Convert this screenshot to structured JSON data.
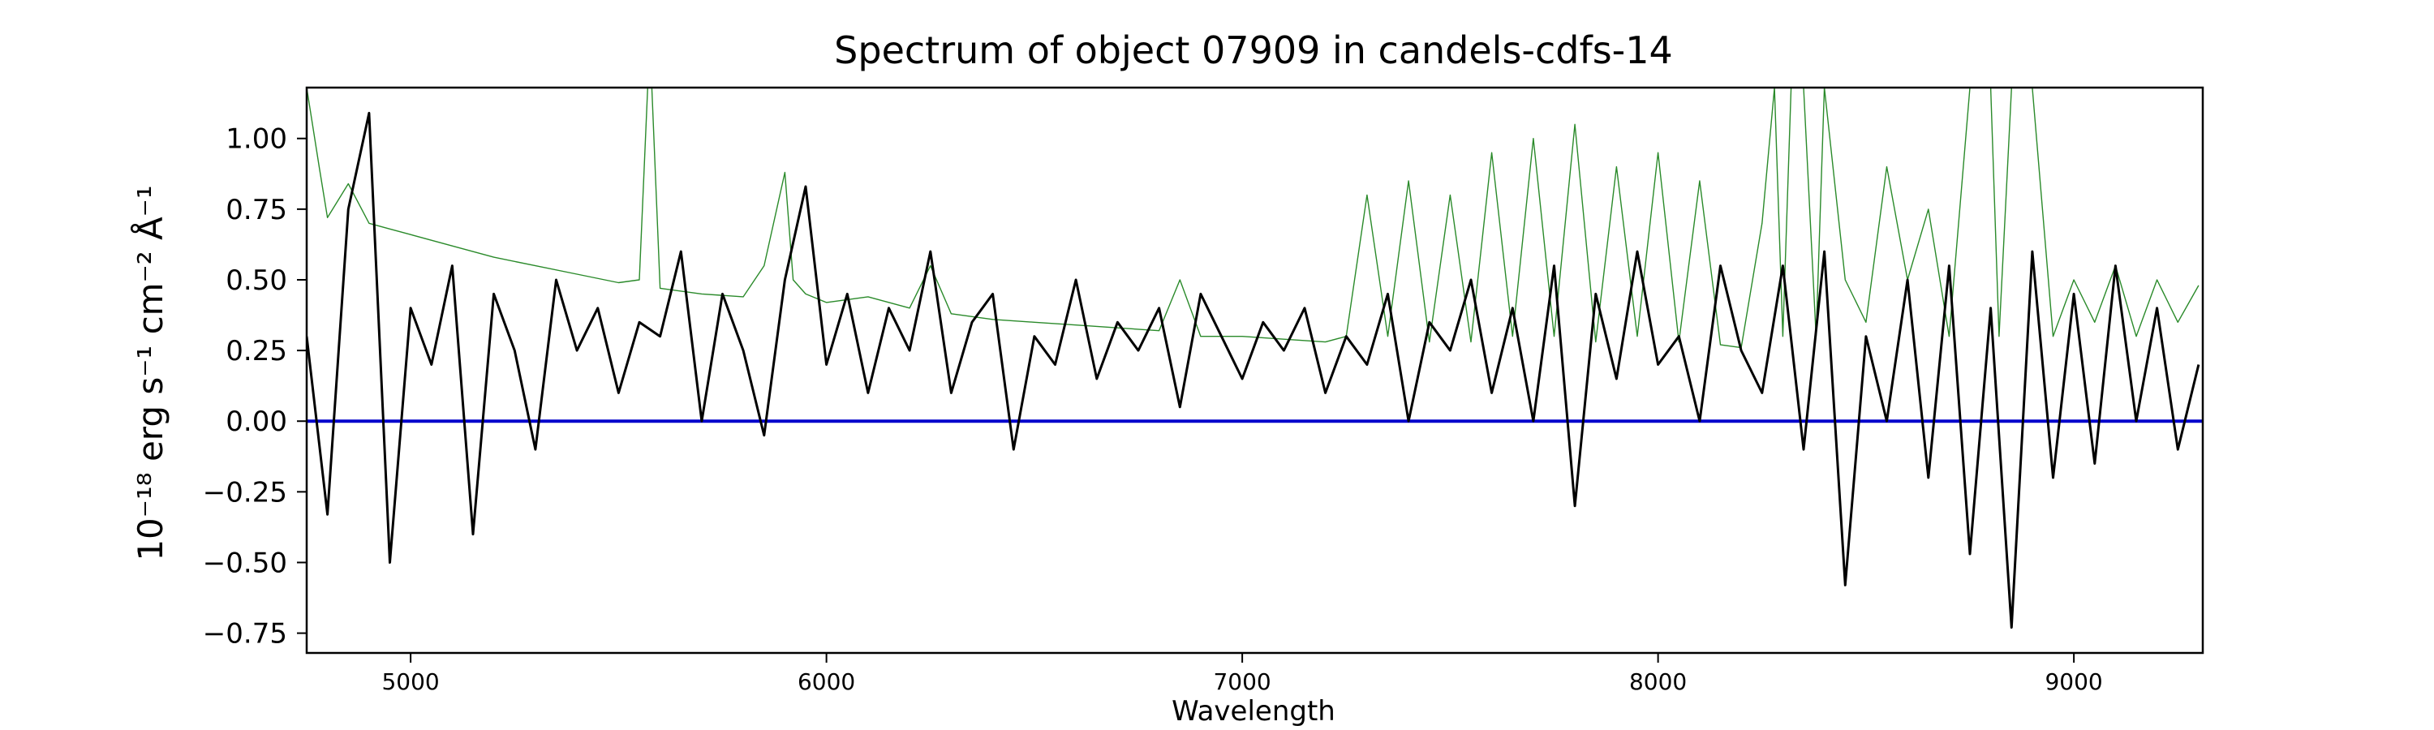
{
  "chart_data": {
    "type": "line",
    "title": "Spectrum of object 07909 in candels-cdfs-14",
    "xlabel": "Wavelength",
    "ylabel": "10⁻¹⁸ erg s⁻¹ cm⁻² Å⁻¹",
    "xlim": [
      4750,
      9310
    ],
    "ylim": [
      -0.82,
      1.18
    ],
    "x_ticks": [
      5000,
      6000,
      7000,
      8000,
      9000
    ],
    "y_ticks": [
      1.0,
      0.75,
      0.5,
      0.25,
      0.0,
      -0.25,
      -0.5,
      -0.75
    ],
    "x_tick_labels": [
      "5000",
      "6000",
      "7000",
      "8000",
      "9000"
    ],
    "y_tick_labels": [
      "1.00",
      "0.75",
      "0.50",
      "0.25",
      "0.00",
      "−0.25",
      "−0.50",
      "−0.75"
    ],
    "grid": false,
    "series": [
      {
        "role": "flux",
        "color": "#000000",
        "x": [
          4750,
          4800,
          4850,
          4900,
          4950,
          5000,
          5050,
          5100,
          5150,
          5200,
          5250,
          5300,
          5350,
          5400,
          5450,
          5500,
          5550,
          5600,
          5650,
          5700,
          5750,
          5800,
          5850,
          5900,
          5950,
          6000,
          6050,
          6100,
          6150,
          6200,
          6250,
          6300,
          6350,
          6400,
          6450,
          6500,
          6550,
          6600,
          6650,
          6700,
          6750,
          6800,
          6850,
          6900,
          6950,
          7000,
          7050,
          7100,
          7150,
          7200,
          7250,
          7300,
          7350,
          7400,
          7450,
          7500,
          7550,
          7600,
          7650,
          7700,
          7750,
          7800,
          7850,
          7900,
          7950,
          8000,
          8050,
          8100,
          8150,
          8200,
          8250,
          8300,
          8350,
          8400,
          8450,
          8500,
          8550,
          8600,
          8650,
          8700,
          8750,
          8800,
          8850,
          8900,
          8950,
          9000,
          9050,
          9100,
          9150,
          9200,
          9250,
          9300
        ],
        "y": [
          0.3,
          -0.33,
          0.75,
          1.09,
          -0.5,
          0.4,
          0.2,
          0.55,
          -0.4,
          0.45,
          0.25,
          -0.1,
          0.5,
          0.25,
          0.4,
          0.1,
          0.35,
          0.3,
          0.6,
          0.0,
          0.45,
          0.25,
          -0.05,
          0.5,
          0.83,
          0.2,
          0.45,
          0.1,
          0.4,
          0.25,
          0.6,
          0.1,
          0.35,
          0.45,
          -0.1,
          0.3,
          0.2,
          0.5,
          0.15,
          0.35,
          0.25,
          0.4,
          0.05,
          0.45,
          0.3,
          0.15,
          0.35,
          0.25,
          0.4,
          0.1,
          0.3,
          0.2,
          0.45,
          0.0,
          0.35,
          0.25,
          0.5,
          0.1,
          0.4,
          0.0,
          0.55,
          -0.3,
          0.45,
          0.15,
          0.6,
          0.2,
          0.3,
          0.0,
          0.55,
          0.25,
          0.1,
          0.55,
          -0.1,
          0.6,
          -0.58,
          0.3,
          0.0,
          0.5,
          -0.2,
          0.55,
          -0.47,
          0.4,
          -0.73,
          0.6,
          -0.2,
          0.45,
          -0.15,
          0.55,
          0.0,
          0.4,
          -0.1,
          0.2
        ]
      },
      {
        "role": "error",
        "color": "#2a8a2a",
        "x": [
          4750,
          4780,
          4800,
          4850,
          4900,
          4950,
          5000,
          5100,
          5200,
          5300,
          5400,
          5500,
          5550,
          5570,
          5580,
          5600,
          5700,
          5800,
          5850,
          5900,
          5920,
          5950,
          6000,
          6100,
          6200,
          6250,
          6300,
          6400,
          6500,
          6600,
          6700,
          6800,
          6850,
          6900,
          7000,
          7100,
          7200,
          7250,
          7300,
          7350,
          7400,
          7450,
          7500,
          7550,
          7600,
          7650,
          7700,
          7750,
          7800,
          7850,
          7900,
          7950,
          8000,
          8050,
          8100,
          8150,
          8200,
          8250,
          8280,
          8300,
          8320,
          8350,
          8380,
          8400,
          8450,
          8500,
          8550,
          8600,
          8650,
          8700,
          8750,
          8770,
          8800,
          8820,
          8850,
          8900,
          8950,
          9000,
          9050,
          9100,
          9150,
          9200,
          9250,
          9300
        ],
        "y": [
          1.18,
          0.9,
          0.72,
          0.84,
          0.7,
          0.68,
          0.66,
          0.62,
          0.58,
          0.55,
          0.52,
          0.49,
          0.5,
          1.18,
          1.18,
          0.47,
          0.45,
          0.44,
          0.55,
          0.88,
          0.5,
          0.45,
          0.42,
          0.44,
          0.4,
          0.55,
          0.38,
          0.36,
          0.35,
          0.34,
          0.33,
          0.32,
          0.5,
          0.3,
          0.3,
          0.29,
          0.28,
          0.3,
          0.8,
          0.3,
          0.85,
          0.28,
          0.8,
          0.28,
          0.95,
          0.3,
          1.0,
          0.3,
          1.05,
          0.28,
          0.9,
          0.3,
          0.95,
          0.28,
          0.85,
          0.27,
          0.26,
          0.7,
          1.18,
          0.3,
          1.18,
          1.18,
          0.3,
          1.18,
          0.5,
          0.35,
          0.9,
          0.5,
          0.75,
          0.3,
          1.18,
          1.18,
          1.18,
          0.3,
          1.18,
          1.18,
          0.3,
          0.5,
          0.35,
          0.55,
          0.3,
          0.5,
          0.35,
          0.48
        ]
      },
      {
        "role": "zero",
        "color": "#0000cc",
        "x": [
          4750,
          9310
        ],
        "y": [
          0,
          0
        ]
      }
    ]
  }
}
